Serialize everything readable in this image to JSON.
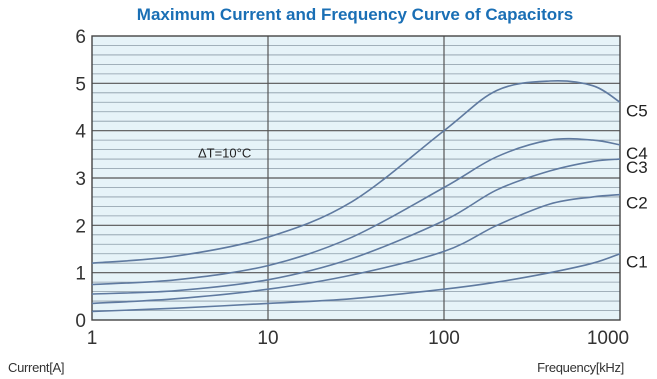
{
  "chart_data": {
    "type": "line",
    "title": "Maximum Current and Frequency Curve of Capacitors",
    "xlabel": "Frequency[kHz]",
    "ylabel": "Current[A]",
    "x_scale": "log",
    "xlim": [
      1,
      1000
    ],
    "ylim": [
      0,
      6
    ],
    "x_ticks": [
      "1",
      "10",
      "100",
      "1000"
    ],
    "y_ticks": [
      "0",
      "1",
      "2",
      "3",
      "4",
      "5",
      "6"
    ],
    "grid": true,
    "annotation": "ΔT=10°C",
    "series": [
      {
        "name": "C5",
        "x": [
          1,
          3,
          10,
          30,
          100,
          200,
          400,
          700,
          1000
        ],
        "y": [
          1.2,
          1.35,
          1.75,
          2.5,
          4.0,
          4.85,
          5.05,
          4.95,
          4.6
        ]
      },
      {
        "name": "C4",
        "x": [
          1,
          3,
          10,
          30,
          100,
          200,
          400,
          700,
          1000
        ],
        "y": [
          0.75,
          0.85,
          1.15,
          1.75,
          2.8,
          3.45,
          3.8,
          3.8,
          3.7
        ]
      },
      {
        "name": "C3",
        "x": [
          1,
          3,
          10,
          30,
          100,
          200,
          400,
          700,
          1000
        ],
        "y": [
          0.55,
          0.62,
          0.85,
          1.3,
          2.1,
          2.75,
          3.15,
          3.35,
          3.4
        ]
      },
      {
        "name": "C2",
        "x": [
          1,
          3,
          10,
          30,
          100,
          200,
          400,
          700,
          1000
        ],
        "y": [
          0.35,
          0.45,
          0.65,
          0.95,
          1.45,
          2.0,
          2.45,
          2.6,
          2.65
        ]
      },
      {
        "name": "C1",
        "x": [
          1,
          3,
          10,
          30,
          100,
          200,
          400,
          700,
          1000
        ],
        "y": [
          0.18,
          0.25,
          0.35,
          0.45,
          0.65,
          0.8,
          1.0,
          1.2,
          1.4
        ]
      }
    ],
    "colors": {
      "title": "#1a6fb5",
      "plot_background": "#e6f3f8",
      "line": "#5f7aa0",
      "major_grid": "#555555",
      "minor_grid": "#8a9aa6"
    }
  }
}
